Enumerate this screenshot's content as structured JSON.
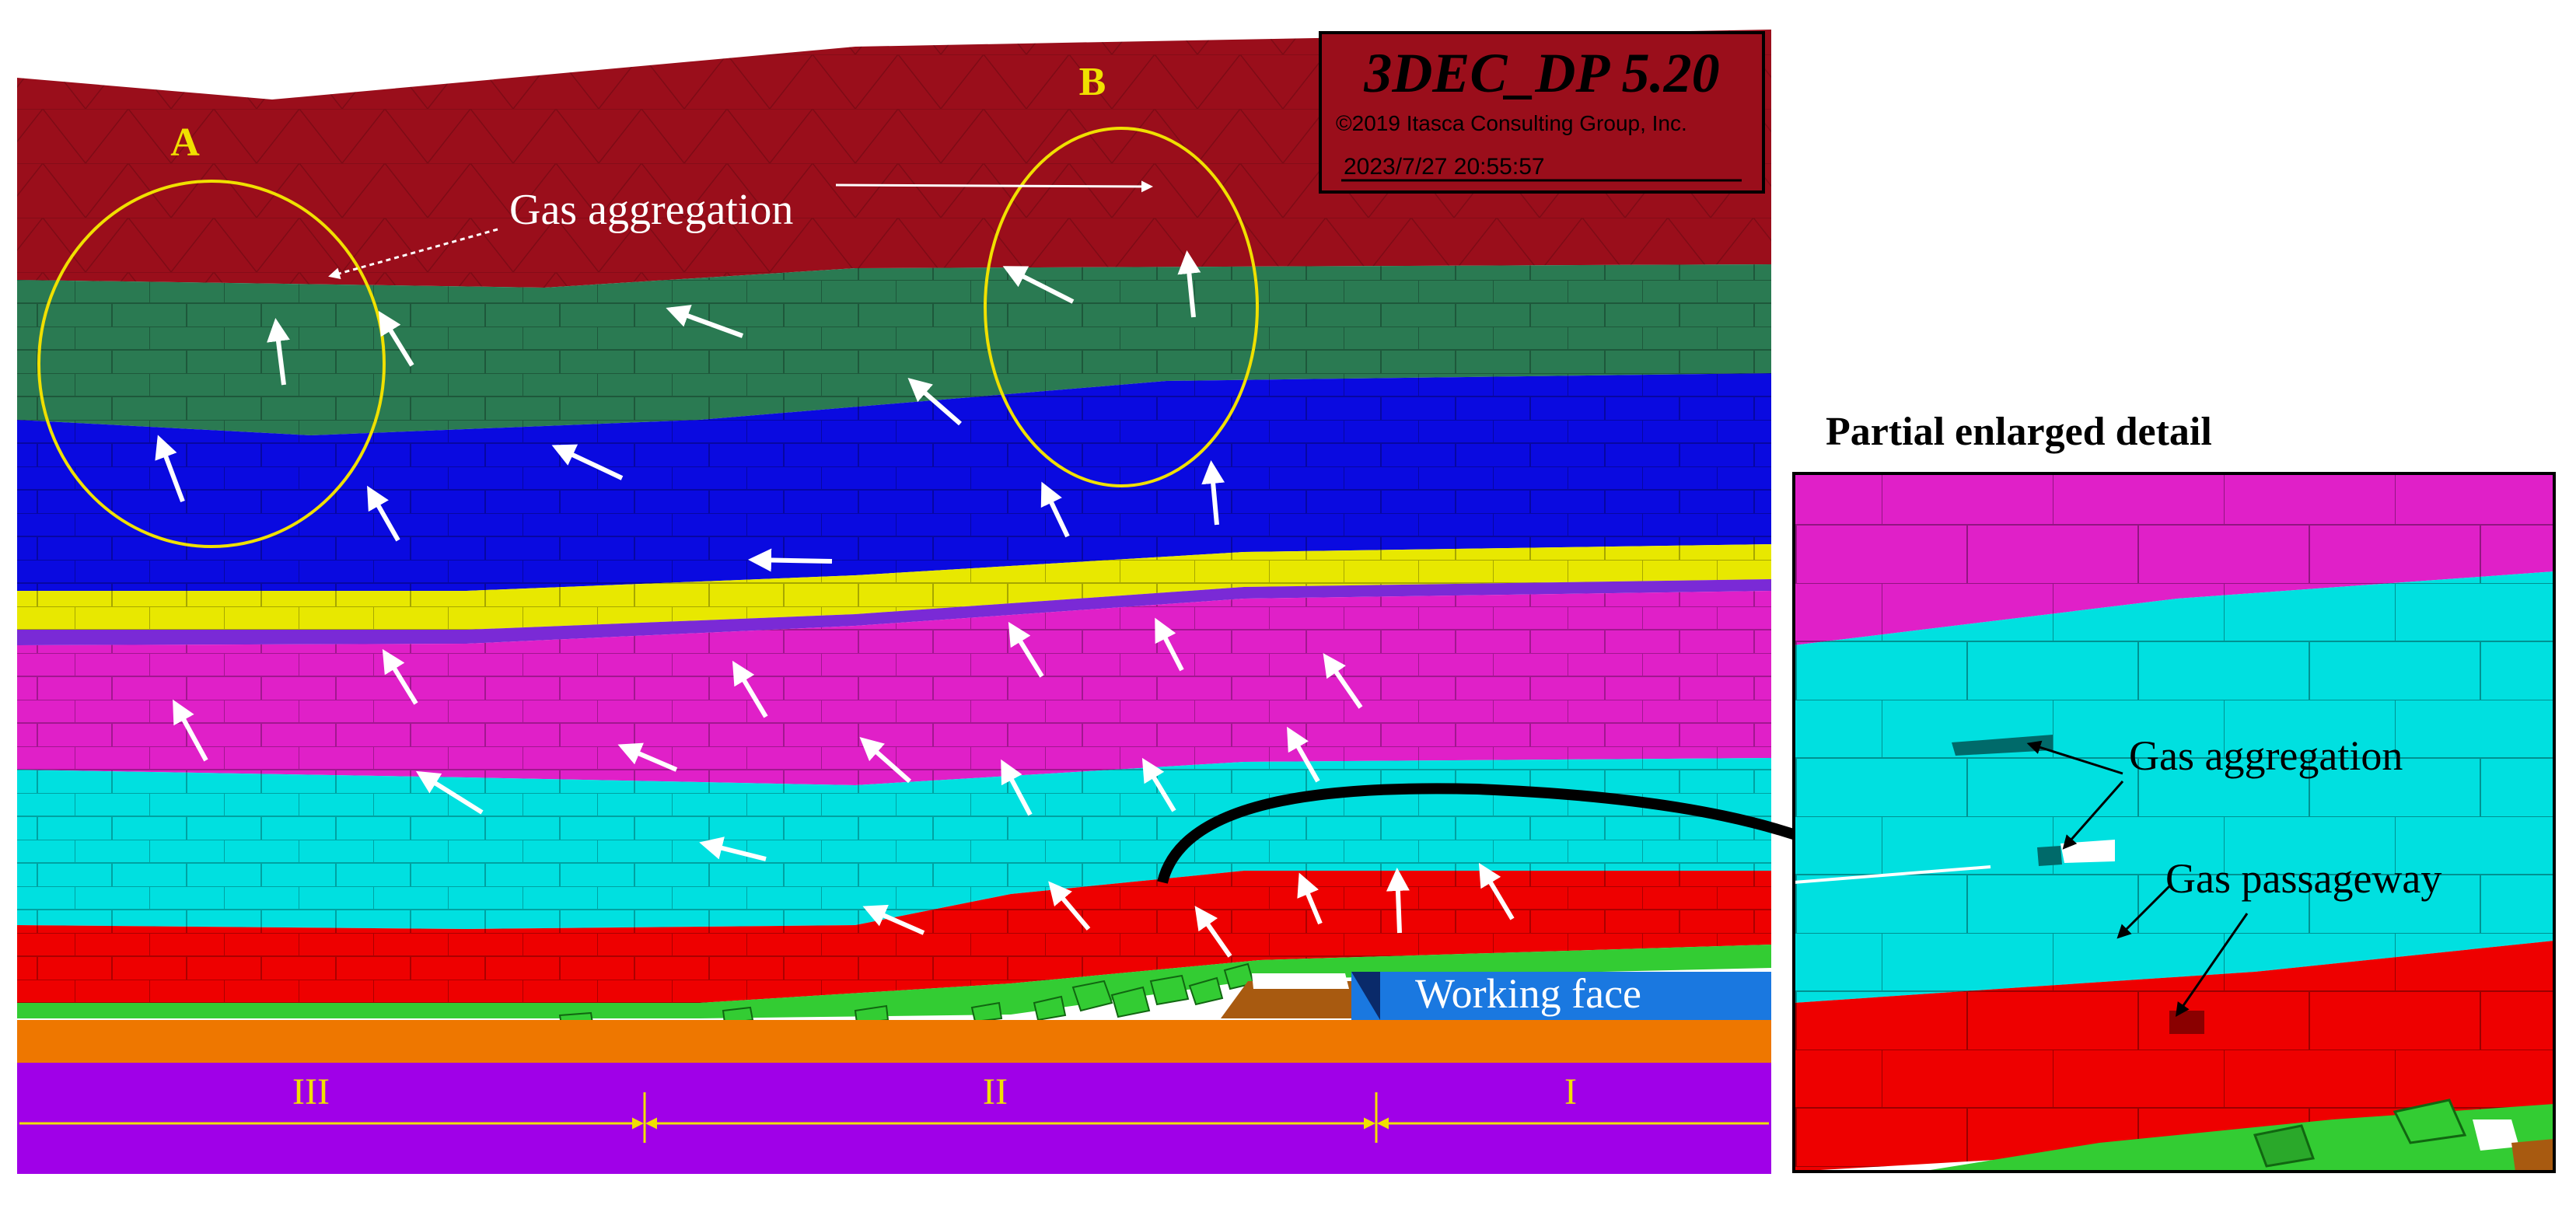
{
  "colors": {
    "top_strata": "#9a0e1b",
    "green_strata": "#2a7a52",
    "blue_strata": "#0a0ae0",
    "yellow_strata": "#e8e800",
    "violet_thin": "#7a2ad6",
    "magenta_strata": "#e020c8",
    "cyan_strata": "#00e0e0",
    "red_strata": "#ee0000",
    "rubble_green": "#33cc33",
    "orange_floor": "#ee7700",
    "purple_base": "#a000e8",
    "working_face": "#1a78e0",
    "annotation_yellow": "#f0e000",
    "arrow_white": "#ffffff"
  },
  "software_box": {
    "title": "3DEC_DP 5.20",
    "copyright": "©2019 Itasca Consulting Group, Inc.",
    "timestamp": "2023/7/27 20:55:57"
  },
  "main_model": {
    "labels": {
      "circle_a": "A",
      "circle_b": "B",
      "gas_aggregation": "Gas aggregation",
      "working_face": "Working face"
    },
    "zones": [
      "III",
      "II",
      "I"
    ]
  },
  "detail_panel": {
    "title": "Partial enlarged detail",
    "gas_aggregation": "Gas aggregation",
    "gas_passageway": "Gas passageway"
  }
}
